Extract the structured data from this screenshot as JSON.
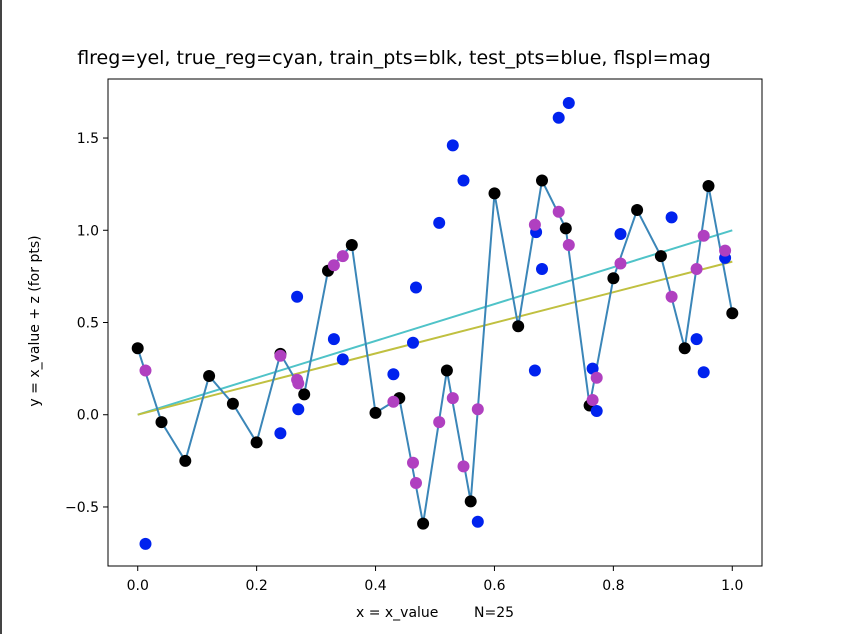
{
  "chart_data": {
    "type": "scatter",
    "title": "flreg=yel, true_reg=cyan, train_pts=blk, test_pts=blue, flspl=mag",
    "xlabel": "x = x_value        N=25",
    "ylabel": "y = x_value + z (for pts)",
    "xlim": [
      -0.05,
      1.05
    ],
    "ylim": [
      -0.82,
      1.82
    ],
    "xticks": [
      "0.0",
      "0.2",
      "0.4",
      "0.6",
      "0.8",
      "1.0"
    ],
    "xtick_values": [
      0.0,
      0.2,
      0.4,
      0.6,
      0.8,
      1.0
    ],
    "yticks": [
      "−0.5",
      "0.0",
      "0.5",
      "1.0",
      "1.5"
    ],
    "ytick_values": [
      -0.5,
      0.0,
      0.5,
      1.0,
      1.5
    ],
    "grid": false,
    "series": [
      {
        "kind": "line",
        "color": "#4fc3c8",
        "x": [
          0,
          1
        ],
        "y": [
          0,
          1
        ]
      },
      {
        "kind": "line",
        "color": "#c0c040",
        "x": [
          0,
          1
        ],
        "y": [
          0,
          0.83
        ]
      },
      {
        "kind": "line",
        "color": "#3b86b8",
        "x": [
          0.0,
          0.04,
          0.08,
          0.12,
          0.16,
          0.2,
          0.24,
          0.28,
          0.32,
          0.36,
          0.4,
          0.44,
          0.48,
          0.52,
          0.56,
          0.6,
          0.64,
          0.68,
          0.72,
          0.76,
          0.8,
          0.84,
          0.88,
          0.92,
          0.96,
          1.0
        ],
        "y": [
          0.36,
          -0.04,
          -0.25,
          0.21,
          0.06,
          -0.15,
          0.33,
          0.11,
          0.78,
          0.92,
          0.01,
          0.09,
          -0.59,
          0.24,
          -0.47,
          1.2,
          0.48,
          1.27,
          1.01,
          0.05,
          0.74,
          1.11,
          0.86,
          0.36,
          1.24,
          0.55
        ]
      },
      {
        "kind": "points",
        "color": "#000000",
        "x": [
          0.0,
          0.04,
          0.08,
          0.12,
          0.16,
          0.2,
          0.24,
          0.28,
          0.32,
          0.36,
          0.4,
          0.44,
          0.48,
          0.52,
          0.56,
          0.6,
          0.64,
          0.68,
          0.72,
          0.76,
          0.8,
          0.84,
          0.88,
          0.92,
          0.96,
          1.0
        ],
        "y": [
          0.36,
          -0.04,
          -0.25,
          0.21,
          0.06,
          -0.15,
          0.33,
          0.11,
          0.78,
          0.92,
          0.01,
          0.09,
          -0.59,
          0.24,
          -0.47,
          1.2,
          0.48,
          1.27,
          1.01,
          0.05,
          0.74,
          1.11,
          0.86,
          0.36,
          1.24,
          0.55
        ]
      },
      {
        "kind": "points",
        "color": "#0022ee",
        "x": [
          0.013,
          0.24,
          0.268,
          0.27,
          0.33,
          0.345,
          0.43,
          0.463,
          0.468,
          0.507,
          0.53,
          0.548,
          0.572,
          0.668,
          0.67,
          0.68,
          0.708,
          0.725,
          0.765,
          0.772,
          0.812,
          0.898,
          0.94,
          0.952,
          0.988
        ],
        "y": [
          -0.7,
          -0.1,
          0.64,
          0.03,
          0.41,
          0.3,
          0.22,
          0.39,
          0.69,
          1.04,
          1.46,
          1.27,
          -0.58,
          0.24,
          0.99,
          0.79,
          1.61,
          1.69,
          0.25,
          0.02,
          0.98,
          1.07,
          0.41,
          0.23,
          0.85
        ]
      },
      {
        "kind": "points",
        "color": "#b040c0",
        "x": [
          0.013,
          0.24,
          0.268,
          0.27,
          0.33,
          0.345,
          0.43,
          0.463,
          0.468,
          0.507,
          0.53,
          0.548,
          0.572,
          0.668,
          0.708,
          0.725,
          0.765,
          0.772,
          0.812,
          0.898,
          0.94,
          0.952,
          0.988
        ],
        "y": [
          0.24,
          0.32,
          0.19,
          0.17,
          0.81,
          0.86,
          0.07,
          -0.26,
          -0.37,
          -0.04,
          0.09,
          -0.28,
          0.03,
          1.03,
          1.1,
          0.92,
          0.08,
          0.2,
          0.82,
          0.64,
          0.79,
          0.97,
          0.89
        ]
      }
    ]
  }
}
